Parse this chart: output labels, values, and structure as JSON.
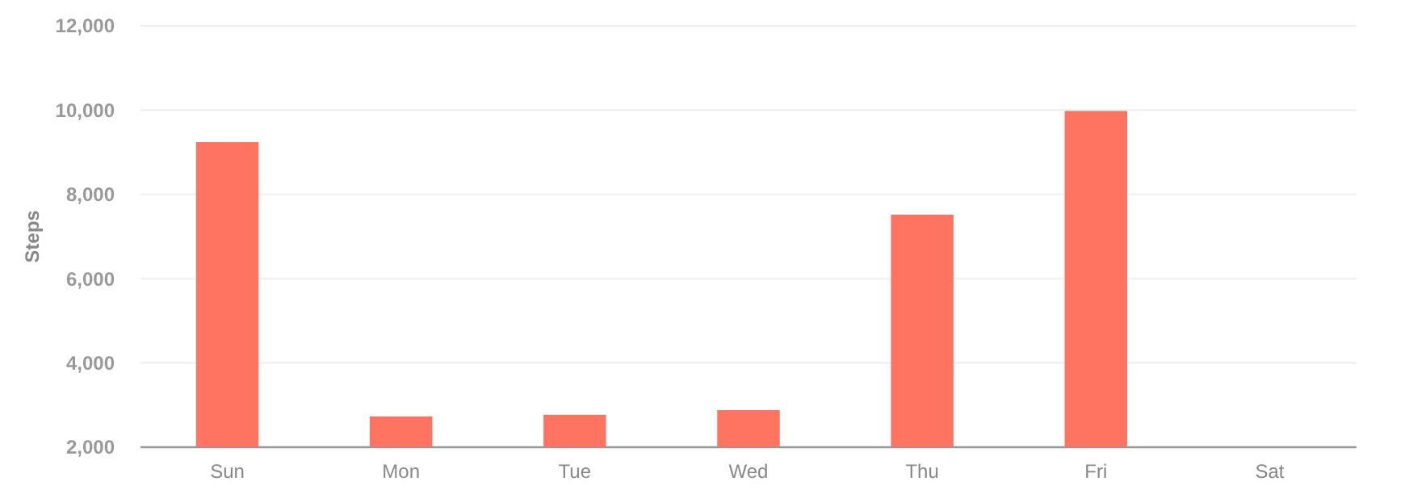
{
  "chart_data": {
    "type": "bar",
    "ylabel": "Steps",
    "categories": [
      "Sun",
      "Mon",
      "Tue",
      "Wed",
      "Thu",
      "Fri",
      "Sat"
    ],
    "values": [
      9240,
      2730,
      2770,
      2880,
      7520,
      9980,
      null
    ],
    "color": "#ff7361",
    "ylim": [
      2000,
      12000
    ],
    "yticks": [
      {
        "value": 2000,
        "label": "2,000"
      },
      {
        "value": 4000,
        "label": "4,000"
      },
      {
        "value": 6000,
        "label": "6,000"
      },
      {
        "value": 8000,
        "label": "8,000"
      },
      {
        "value": 10000,
        "label": "10,000"
      },
      {
        "value": 12000,
        "label": "12,000"
      }
    ],
    "grid": "y"
  }
}
